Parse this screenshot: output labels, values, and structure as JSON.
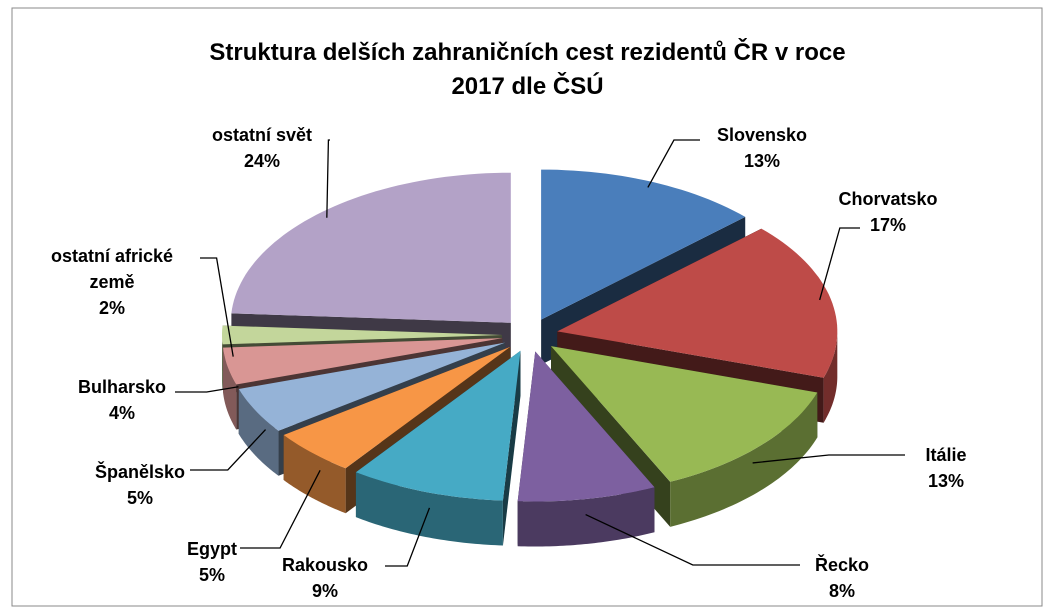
{
  "chart_data": {
    "type": "pie3d",
    "title": "Struktura delších zahraničních cest rezidentů ČR v roce 2017 dle ČSÚ",
    "categories": [
      "Slovensko",
      "Chorvatsko",
      "Itálie",
      "Řecko",
      "Rakousko",
      "Egypt",
      "Španělsko",
      "Bulharsko",
      "ostatní africké země",
      "ostatní svět"
    ],
    "values": [
      13,
      17,
      13,
      8,
      9,
      5,
      5,
      4,
      2,
      24
    ],
    "value_labels": [
      "13%",
      "17%",
      "13%",
      "8%",
      "9%",
      "5%",
      "5%",
      "4%",
      "2%",
      "24%"
    ],
    "colors": [
      "#4a7ebb",
      "#be4b48",
      "#98b954",
      "#7d60a0",
      "#46aac5",
      "#f79646",
      "#95b3d7",
      "#d99694",
      "#c3d69b",
      "#b3a2c7"
    ]
  }
}
